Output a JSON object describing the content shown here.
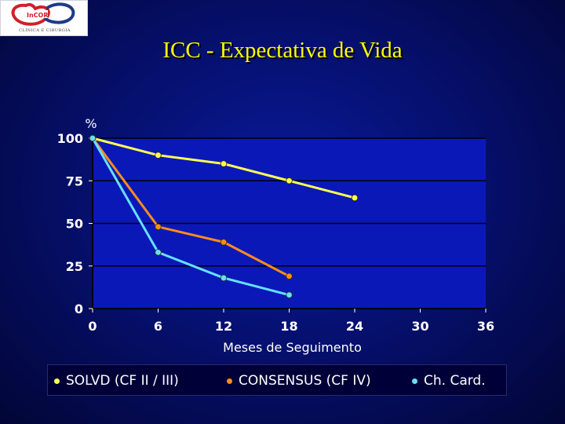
{
  "slide": {
    "logo_text": "CLÍNICA E CIRURGIA",
    "title": "ICC - Expectativa  de  Vida"
  },
  "colors": {
    "plot_background": "#0b18b8",
    "gridline": "#000000",
    "solvd": "#ffff55",
    "consensus": "#ff8c1a",
    "ch_card": "#66e0ff"
  },
  "chart_data": {
    "type": "line",
    "title": "",
    "xlabel": "Meses de Seguimento",
    "ylabel": "%",
    "xlim": [
      0,
      36
    ],
    "ylim": [
      0,
      100
    ],
    "x_ticks": [
      0,
      6,
      12,
      18,
      24,
      30,
      36
    ],
    "y_ticks": [
      0,
      25,
      50,
      75,
      100
    ],
    "grid": "horizontal",
    "legend_position": "bottom",
    "series": [
      {
        "name": "SOLVD (CF II / III)",
        "color": "#ffff55",
        "x": [
          0,
          6,
          12,
          18,
          24
        ],
        "y": [
          100,
          90,
          85,
          75,
          65
        ]
      },
      {
        "name": "CONSENSUS (CF IV)",
        "color": "#ff8c1a",
        "x": [
          0,
          6,
          12,
          18
        ],
        "y": [
          100,
          48,
          39,
          19
        ]
      },
      {
        "name": "Ch. Card.",
        "color": "#66e0ff",
        "x": [
          0,
          6,
          12,
          18
        ],
        "y": [
          100,
          33,
          18,
          8
        ]
      }
    ]
  }
}
